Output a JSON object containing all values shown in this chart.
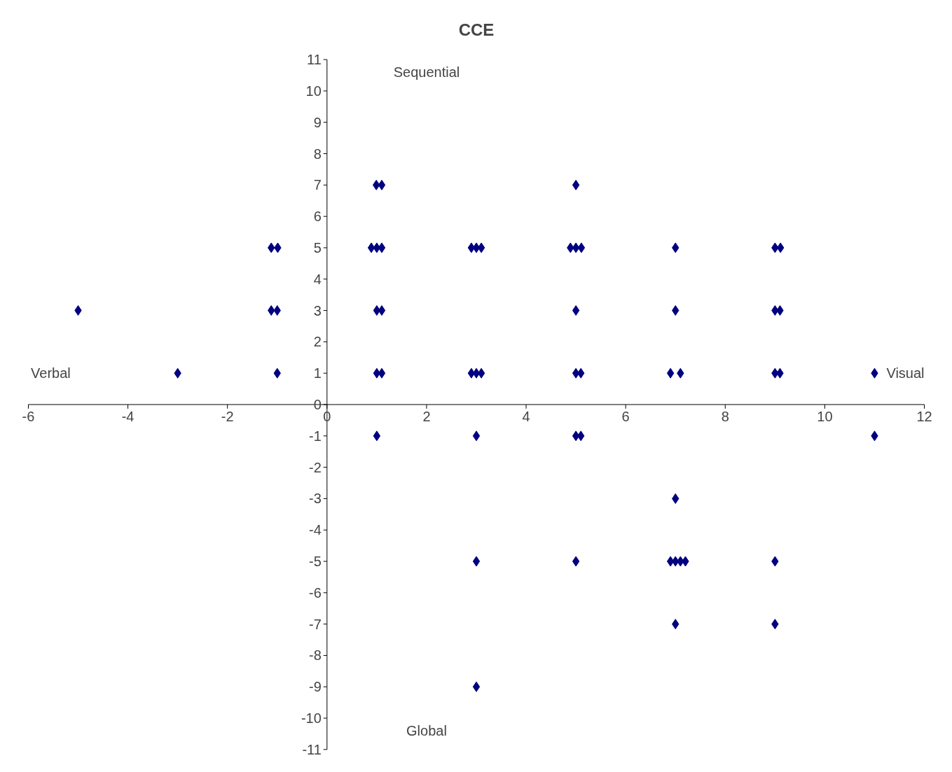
{
  "chart_data": {
    "type": "scatter",
    "title": "CCE",
    "x": [
      0.99,
      1.1,
      5.0,
      -1.12,
      -0.99,
      0.89,
      1.0,
      1.1,
      2.9,
      3.0,
      3.1,
      4.89,
      5.0,
      5.11,
      7.0,
      9.0,
      9.11,
      -5.0,
      -1.12,
      -1.0,
      1.0,
      1.1,
      5.0,
      7.0,
      9.0,
      9.1,
      -3.0,
      -1.0,
      1.0,
      1.1,
      2.9,
      3.0,
      3.1,
      5.0,
      5.1,
      6.9,
      7.1,
      9.0,
      9.1,
      11.0,
      1.0,
      3.0,
      5.0,
      5.1,
      11.0,
      7.0,
      3.0,
      5.0,
      6.9,
      7.0,
      7.1,
      7.2,
      9.0,
      7.0,
      9.0,
      3.0
    ],
    "series": [
      {
        "color": "#000080",
        "values": [
          7,
          7,
          7,
          5,
          5,
          5,
          5,
          5,
          5,
          5,
          5,
          5,
          5,
          5,
          5,
          5,
          5,
          3,
          3,
          3,
          3,
          3,
          3,
          3,
          3,
          3,
          1,
          1,
          1,
          1,
          1,
          1,
          1,
          1,
          1,
          1,
          1,
          1,
          1,
          1,
          -1,
          -1,
          -1,
          -1,
          -1,
          -3,
          -5,
          -5,
          -5,
          -5,
          -5,
          -5,
          -5,
          -7,
          -7,
          -9
        ]
      }
    ],
    "xlim": [
      -6,
      12
    ],
    "xticks": [
      -6,
      -4,
      -2,
      0,
      2,
      4,
      6,
      8,
      10,
      12
    ],
    "ylim": [
      -11,
      11
    ],
    "yticks": [
      -11,
      -10,
      -9,
      -8,
      -7,
      -6,
      -5,
      -4,
      -3,
      -2,
      -1,
      0,
      1,
      2,
      3,
      4,
      5,
      6,
      7,
      8,
      9,
      10,
      11
    ],
    "annotations": [
      "Verbal",
      "Visual",
      "Sequential",
      "Global"
    ],
    "marker": "diamond",
    "grid": false
  }
}
